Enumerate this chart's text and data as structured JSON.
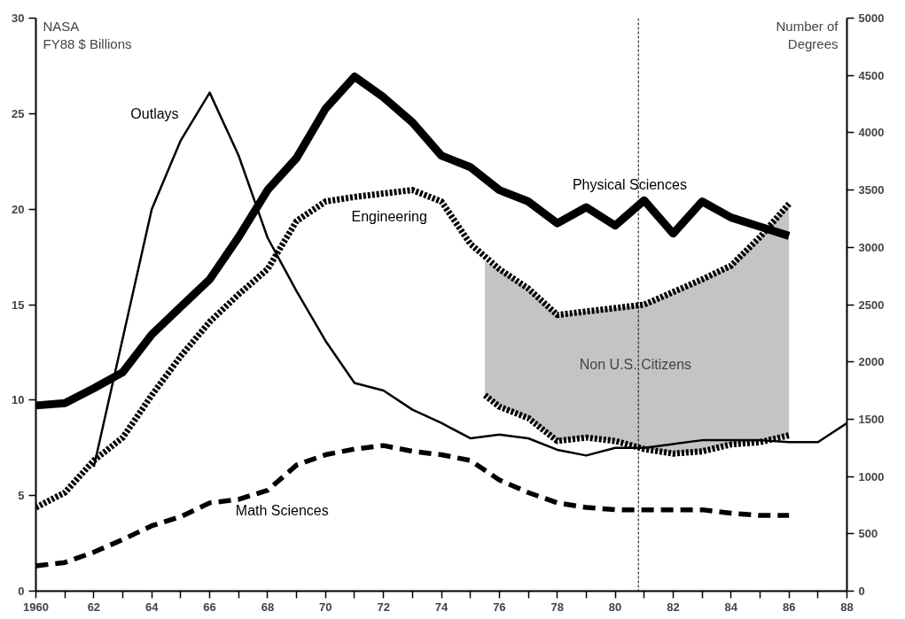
{
  "chart_data": {
    "type": "line",
    "ylabel": "NASA\nFY88 $ Billions",
    "y2label": "Number of\nDegrees",
    "xlim": [
      1960,
      1988
    ],
    "xticks": [
      1960,
      {
        "value": 1961,
        "label": null
      },
      {
        "value": 1962,
        "label": "62"
      },
      {
        "value": 1963,
        "label": null
      },
      {
        "value": 1964,
        "label": "64"
      },
      {
        "value": 1965,
        "label": null
      },
      {
        "value": 1966,
        "label": "66"
      },
      {
        "value": 1967,
        "label": null
      },
      {
        "value": 1968,
        "label": "68"
      },
      {
        "value": 1969,
        "label": null
      },
      {
        "value": 1970,
        "label": "70"
      },
      {
        "value": 1971,
        "label": null
      },
      {
        "value": 1972,
        "label": "72"
      },
      {
        "value": 1973,
        "label": null
      },
      {
        "value": 1974,
        "label": "74"
      },
      {
        "value": 1975,
        "label": null
      },
      {
        "value": 1976,
        "label": "76"
      },
      {
        "value": 1977,
        "label": null
      },
      {
        "value": 1978,
        "label": "78"
      },
      {
        "value": 1979,
        "label": null
      },
      {
        "value": 1980,
        "label": "80"
      },
      {
        "value": 1981,
        "label": null
      },
      {
        "value": 1982,
        "label": "82"
      },
      {
        "value": 1983,
        "label": null
      },
      {
        "value": 1984,
        "label": "84"
      },
      {
        "value": 1985,
        "label": null
      },
      {
        "value": 1986,
        "label": "86"
      },
      {
        "value": 1987,
        "label": null
      },
      {
        "value": 1988,
        "label": "88"
      }
    ],
    "ylim": [
      0,
      30
    ],
    "yticks": [
      0,
      5,
      10,
      15,
      20,
      25,
      30
    ],
    "y2lim": [
      0,
      5000
    ],
    "y2ticks": [
      0,
      500,
      1000,
      1500,
      2000,
      2500,
      3000,
      3500,
      4000,
      4500,
      5000
    ],
    "grid": false,
    "marker": "none",
    "series": [
      {
        "name": "Outlays",
        "color": "#000000",
        "line_style": "solid",
        "x": [
          1962,
          1964,
          1965,
          1966,
          1967,
          1968,
          1969,
          1970,
          1971,
          1972,
          1973,
          1974,
          1975,
          1976,
          1977,
          1978,
          1979,
          1980,
          1981,
          1982,
          1983,
          1984,
          1985,
          1986,
          1987,
          1988
        ],
        "values": [
          6.5,
          20.0,
          23.6,
          26.1,
          22.8,
          18.5,
          15.7,
          13.1,
          10.9,
          10.5,
          9.5,
          8.8,
          8.0,
          8.2,
          8.0,
          7.4,
          7.1,
          7.5,
          7.5,
          7.7,
          7.9,
          7.9,
          7.9,
          7.8,
          7.8,
          8.8
        ]
      },
      {
        "name": "Physical Sciences",
        "color": "#000000",
        "line_style": "solid",
        "axis": "y2",
        "x": [
          1960,
          1961,
          1962,
          1963,
          1964,
          1965,
          1966,
          1967,
          1968,
          1969,
          1970,
          1971,
          1972,
          1973,
          1974,
          1975,
          1976,
          1977,
          1978,
          1979,
          1980,
          1981,
          1982,
          1983,
          1984,
          1985,
          1986
        ],
        "values": [
          1620,
          1640,
          1770,
          1910,
          2240,
          2480,
          2720,
          3090,
          3500,
          3780,
          4210,
          4490,
          4310,
          4090,
          3800,
          3700,
          3500,
          3400,
          3210,
          3350,
          3190,
          3410,
          3120,
          3400,
          3260,
          3180,
          3100
        ]
      },
      {
        "name": "Engineering",
        "color": "#000000",
        "line_style": "dotted",
        "axis": "y2",
        "x": [
          1960,
          1961,
          1962,
          1963,
          1964,
          1965,
          1966,
          1967,
          1968,
          1969,
          1970,
          1971,
          1972,
          1973,
          1974,
          1975,
          1976,
          1977,
          1978,
          1979,
          1980,
          1981,
          1982,
          1983,
          1984,
          1985,
          1986
        ],
        "values": [
          730,
          860,
          1140,
          1340,
          1710,
          2050,
          2350,
          2590,
          2810,
          3230,
          3400,
          3440,
          3470,
          3500,
          3400,
          3030,
          2810,
          2640,
          2410,
          2440,
          2470,
          2500,
          2610,
          2720,
          2840,
          3090,
          3380
        ]
      },
      {
        "color": "#000000",
        "line_style": "dotted",
        "axis": "y2",
        "x": [
          1975.5,
          1976,
          1977,
          1978,
          1979,
          1980,
          1981,
          1982,
          1983,
          1984,
          1985,
          1986
        ],
        "values": [
          1710,
          1610,
          1510,
          1310,
          1340,
          1310,
          1240,
          1200,
          1220,
          1280,
          1300,
          1360
        ],
        "lower": [
          1710,
          1610,
          1510,
          1310,
          1340,
          1310,
          1240,
          1200,
          1220,
          1280,
          1300,
          1360
        ],
        "upper": [
          2870,
          2810,
          2640,
          2410,
          2440,
          2470,
          2500,
          2610,
          2720,
          2840,
          3090,
          3380
        ]
      },
      {
        "name": "Math Sciences",
        "color": "#000000",
        "line_style": "dashed",
        "axis": "y2",
        "x": [
          1960,
          1961,
          1962,
          1963,
          1964,
          1965,
          1966,
          1967,
          1968,
          1969,
          1970,
          1971,
          1972,
          1973,
          1974,
          1975,
          1976,
          1977,
          1978,
          1979,
          1980,
          1981,
          1982,
          1983,
          1984,
          1985,
          1986
        ],
        "values": [
          220,
          250,
          340,
          450,
          570,
          650,
          770,
          800,
          880,
          1100,
          1190,
          1240,
          1270,
          1220,
          1190,
          1140,
          970,
          860,
          770,
          730,
          710,
          710,
          710,
          710,
          680,
          660,
          660
        ]
      }
    ],
    "ref_lines": [
      {
        "axis": "x",
        "value": 1980.8,
        "color": "#000000",
        "line_style": "dotted"
      }
    ],
    "annotations": [
      "Non U.S. Citizens"
    ]
  }
}
